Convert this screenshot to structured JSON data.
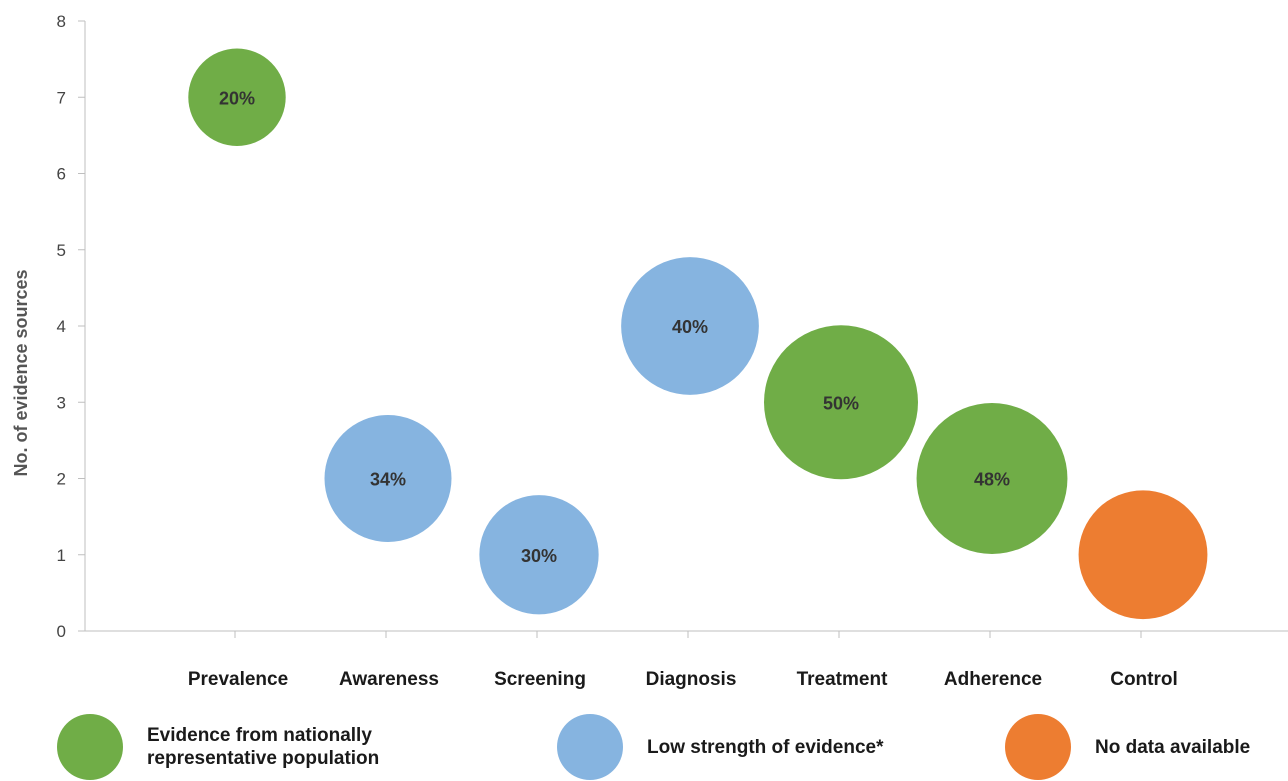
{
  "chart_data": {
    "type": "bubble",
    "ylabel": "No. of evidence sources",
    "ylim": [
      0,
      8
    ],
    "yticks": [
      "0",
      "1",
      "2",
      "3",
      "4",
      "5",
      "6",
      "7",
      "8"
    ],
    "categories": [
      "Prevalence",
      "Awareness",
      "Screening",
      "Diagnosis",
      "Treatment",
      "Adherence",
      "Control"
    ],
    "points": [
      {
        "category": "Prevalence",
        "y": 7,
        "size": 20,
        "label": "20%",
        "group": "national"
      },
      {
        "category": "Awareness",
        "y": 2,
        "size": 34,
        "label": "34%",
        "group": "low"
      },
      {
        "category": "Screening",
        "y": 1,
        "size": 30,
        "label": "30%",
        "group": "low"
      },
      {
        "category": "Diagnosis",
        "y": 4,
        "size": 40,
        "label": "40%",
        "group": "low"
      },
      {
        "category": "Treatment",
        "y": 3,
        "size": 50,
        "label": "50%",
        "group": "national"
      },
      {
        "category": "Adherence",
        "y": 2,
        "size": 48,
        "label": "48%",
        "group": "national"
      },
      {
        "category": "Control",
        "y": 1,
        "size": 35,
        "label": "",
        "group": "none"
      }
    ],
    "legend": [
      {
        "key": "national",
        "label": "Evidence from nationally\nrepresentative population",
        "color": "#70ad47"
      },
      {
        "key": "low",
        "label": "Low strength of evidence*",
        "color": "#86b4e0"
      },
      {
        "key": "none",
        "label": "No data available",
        "color": "#ed7d31"
      }
    ],
    "legend_position": "bottom"
  }
}
